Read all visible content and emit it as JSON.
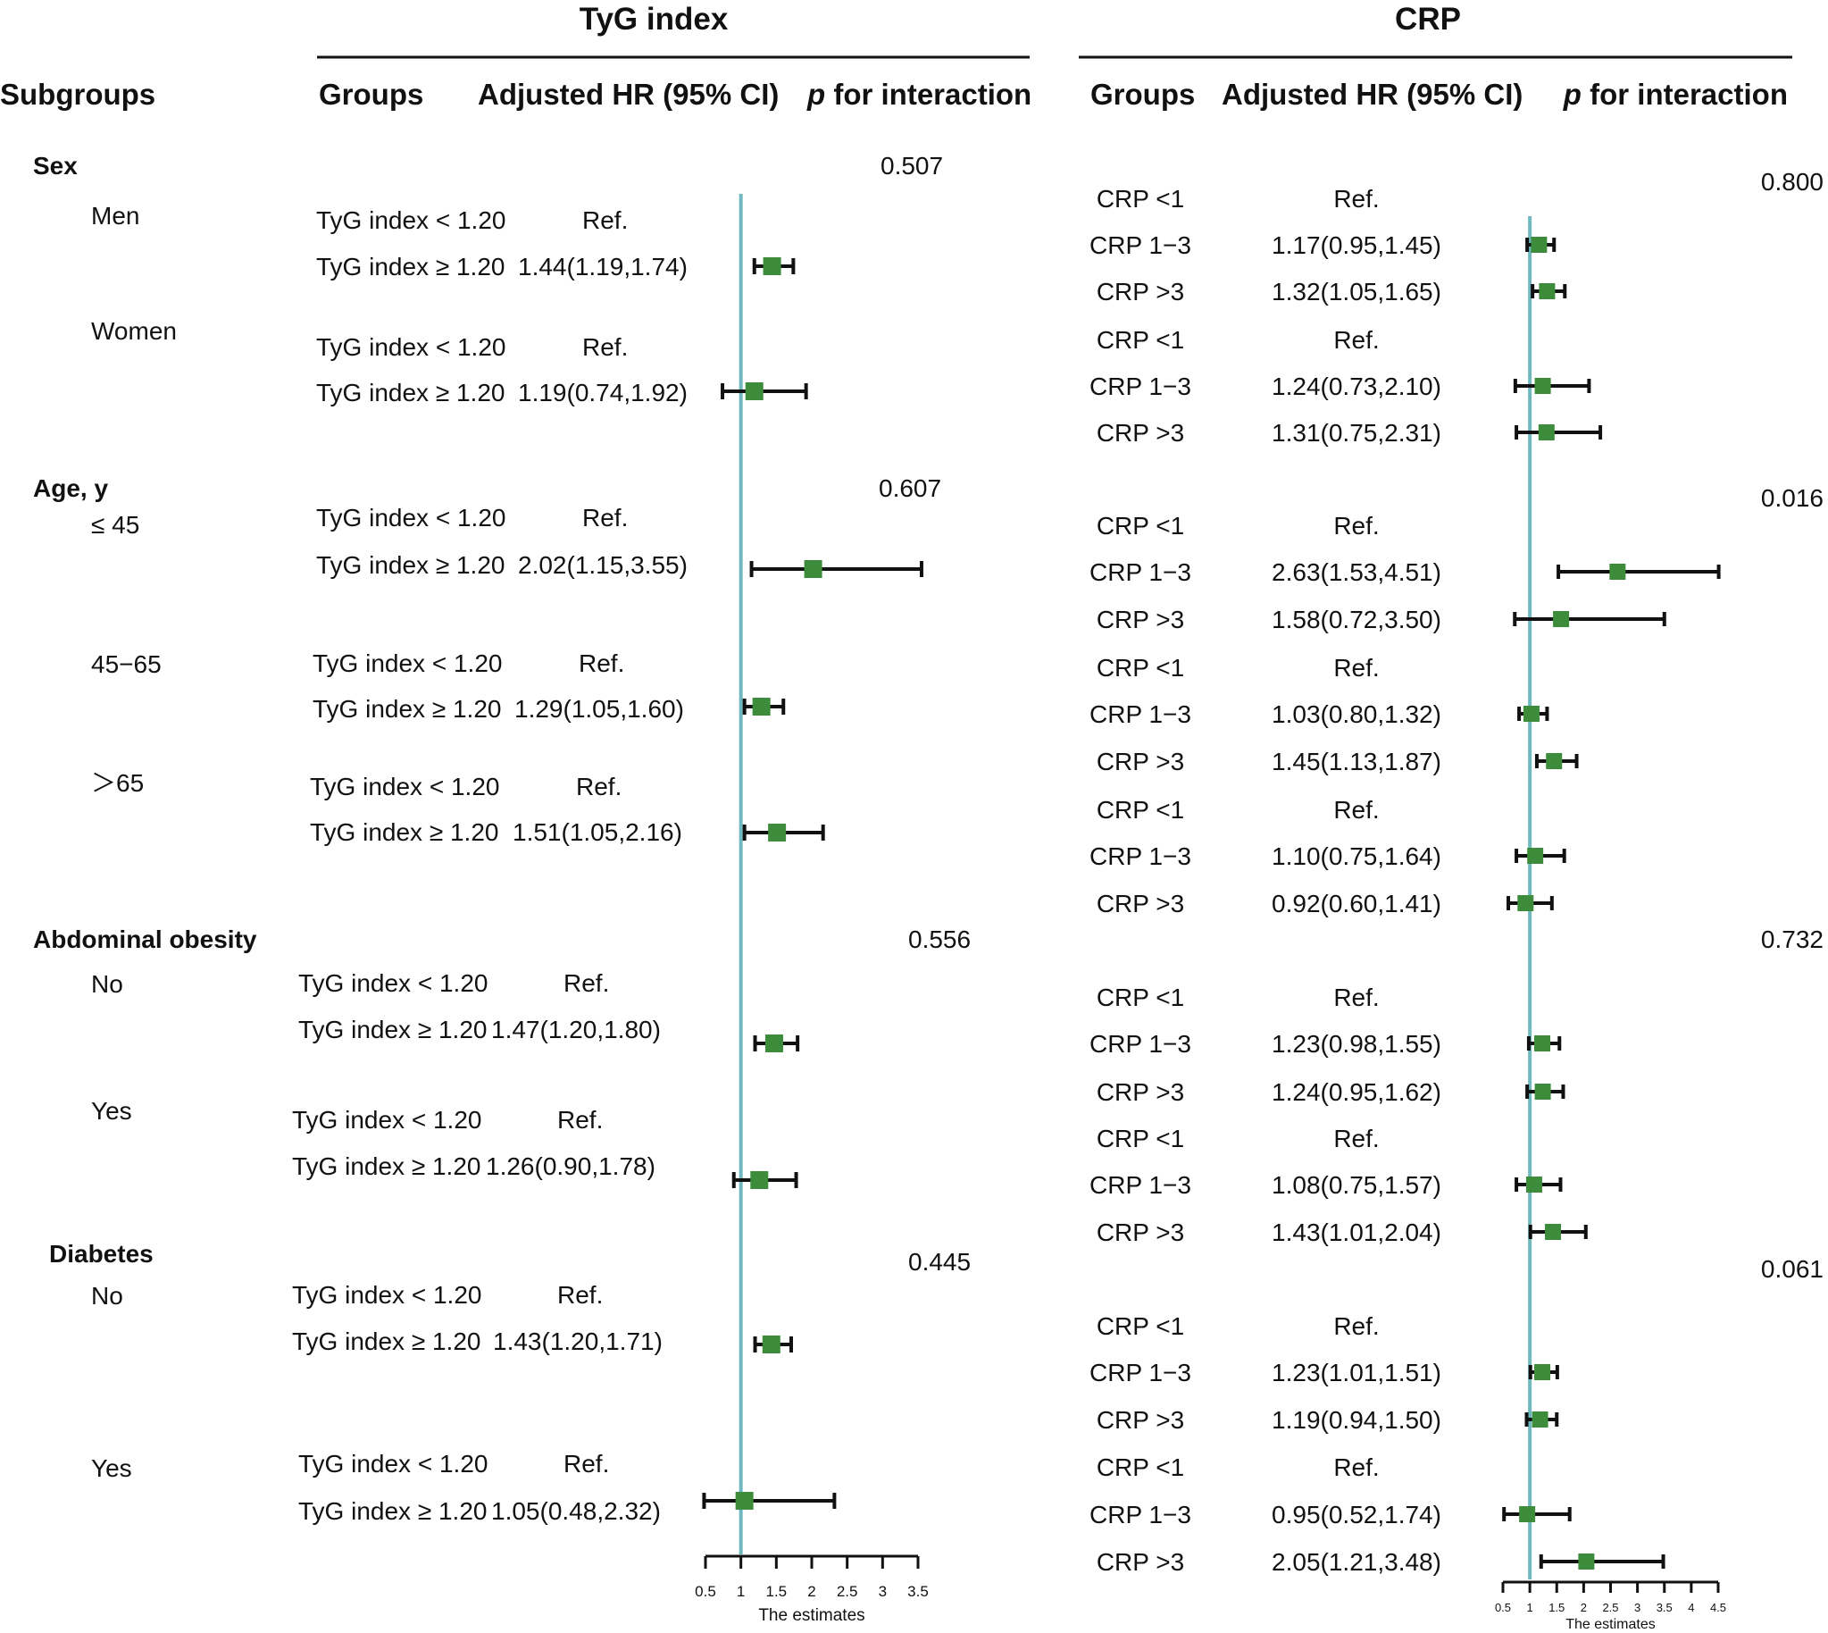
{
  "chart_data": [
    {
      "type": "forest",
      "panel": "tyg",
      "title": "TyG index",
      "headers": {
        "subgroups": "Subgroups",
        "groups": "Groups",
        "hr": "Adjusted HR (95% CI)",
        "p_italic": "p",
        "p_rest": " for interaction"
      },
      "xlabel": "The estimates",
      "xlim": [
        0.5,
        3.5
      ],
      "ticks": [
        0.5,
        1,
        1.5,
        2,
        2.5,
        3,
        3.5
      ],
      "tick_labels": [
        "0.5",
        "1",
        "1.5",
        "2",
        "2.5",
        "3",
        "3.5"
      ],
      "reference_line": 1,
      "categories": [
        {
          "label": "Sex",
          "p_value": "0.507"
        },
        {
          "label": "Age, y",
          "p_value": "0.607"
        },
        {
          "label": "Abdominal obesity",
          "p_value": "0.556"
        },
        {
          "label": "Diabetes",
          "p_value": "0.445"
        }
      ],
      "subgroups": [
        {
          "label": "Men"
        },
        {
          "label": "Women"
        },
        {
          "label": "≤ 45"
        },
        {
          "label": "45−65"
        },
        {
          "label": "＞65"
        },
        {
          "label": "No"
        },
        {
          "label": "Yes"
        },
        {
          "label": "No"
        },
        {
          "label": "Yes"
        }
      ],
      "rows": [
        {
          "group": "TyG index < 1.20",
          "hr_text": "Ref."
        },
        {
          "group": "TyG index ≥ 1.20",
          "hr_text": "1.44(1.19,1.74)",
          "est": 1.44,
          "lo": 1.19,
          "hi": 1.74
        },
        {
          "group": "TyG index < 1.20",
          "hr_text": "Ref."
        },
        {
          "group": "TyG index ≥ 1.20",
          "hr_text": "1.19(0.74,1.92)",
          "est": 1.19,
          "lo": 0.74,
          "hi": 1.92
        },
        {
          "group": "TyG index < 1.20",
          "hr_text": "Ref."
        },
        {
          "group": "TyG index ≥ 1.20",
          "hr_text": "2.02(1.15,3.55)",
          "est": 2.02,
          "lo": 1.15,
          "hi": 3.55
        },
        {
          "group": "TyG index < 1.20",
          "hr_text": "Ref."
        },
        {
          "group": "TyG index ≥ 1.20",
          "hr_text": "1.29(1.05,1.60)",
          "est": 1.29,
          "lo": 1.05,
          "hi": 1.6
        },
        {
          "group": "TyG index < 1.20",
          "hr_text": "Ref."
        },
        {
          "group": "TyG index ≥ 1.20",
          "hr_text": "1.51(1.05,2.16)",
          "est": 1.51,
          "lo": 1.05,
          "hi": 2.16
        },
        {
          "group": "TyG index < 1.20",
          "hr_text": "Ref."
        },
        {
          "group": "TyG index ≥ 1.20",
          "hr_text": "1.47(1.20,1.80)",
          "est": 1.47,
          "lo": 1.2,
          "hi": 1.8
        },
        {
          "group": "TyG index < 1.20",
          "hr_text": "Ref."
        },
        {
          "group": "TyG index ≥ 1.20",
          "hr_text": "1.26(0.90,1.78)",
          "est": 1.26,
          "lo": 0.9,
          "hi": 1.78
        },
        {
          "group": "TyG index < 1.20",
          "hr_text": "Ref."
        },
        {
          "group": "TyG index ≥ 1.20",
          "hr_text": "1.43(1.20,1.71)",
          "est": 1.43,
          "lo": 1.2,
          "hi": 1.71
        },
        {
          "group": "TyG index < 1.20",
          "hr_text": "Ref."
        },
        {
          "group": "TyG index ≥ 1.20",
          "hr_text": "1.05(0.48,2.32)",
          "est": 1.05,
          "lo": 0.48,
          "hi": 2.32
        }
      ]
    },
    {
      "type": "forest",
      "panel": "crp",
      "title": "CRP",
      "headers": {
        "groups": "Groups",
        "hr": "Adjusted HR (95% CI)",
        "p_italic": "p",
        "p_rest": " for interaction"
      },
      "xlabel": "The estimates",
      "xlim": [
        0.5,
        4.5
      ],
      "ticks": [
        0.5,
        1,
        1.5,
        2,
        2.5,
        3,
        3.5,
        4,
        4.5
      ],
      "tick_labels": [
        "0.5",
        "1",
        "1.5",
        "2",
        "2.5",
        "3",
        "3.5",
        "4",
        "4.5"
      ],
      "reference_line": 1,
      "p_values": [
        "0.800",
        "0.016",
        "0.732",
        "0.061"
      ],
      "rows": [
        {
          "group": "CRP <1",
          "hr_text": "Ref."
        },
        {
          "group": "CRP 1−3",
          "hr_text": "1.17(0.95,1.45)",
          "est": 1.17,
          "lo": 0.95,
          "hi": 1.45
        },
        {
          "group": "CRP >3",
          "hr_text": "1.32(1.05,1.65)",
          "est": 1.32,
          "lo": 1.05,
          "hi": 1.65
        },
        {
          "group": "CRP <1",
          "hr_text": "Ref."
        },
        {
          "group": "CRP 1−3",
          "hr_text": "1.24(0.73,2.10)",
          "est": 1.24,
          "lo": 0.73,
          "hi": 2.1
        },
        {
          "group": "CRP >3",
          "hr_text": "1.31(0.75,2.31)",
          "est": 1.31,
          "lo": 0.75,
          "hi": 2.31
        },
        {
          "group": "CRP <1",
          "hr_text": "Ref."
        },
        {
          "group": "CRP 1−3",
          "hr_text": "2.63(1.53,4.51)",
          "est": 2.63,
          "lo": 1.53,
          "hi": 4.51
        },
        {
          "group": "CRP >3",
          "hr_text": "1.58(0.72,3.50)",
          "est": 1.58,
          "lo": 0.72,
          "hi": 3.5
        },
        {
          "group": "CRP <1",
          "hr_text": "Ref."
        },
        {
          "group": "CRP 1−3",
          "hr_text": "1.03(0.80,1.32)",
          "est": 1.03,
          "lo": 0.8,
          "hi": 1.32
        },
        {
          "group": "CRP >3",
          "hr_text": "1.45(1.13,1.87)",
          "est": 1.45,
          "lo": 1.13,
          "hi": 1.87
        },
        {
          "group": "CRP <1",
          "hr_text": "Ref."
        },
        {
          "group": "CRP 1−3",
          "hr_text": "1.10(0.75,1.64)",
          "est": 1.1,
          "lo": 0.75,
          "hi": 1.64
        },
        {
          "group": "CRP >3",
          "hr_text": "0.92(0.60,1.41)",
          "est": 0.92,
          "lo": 0.6,
          "hi": 1.41
        },
        {
          "group": "CRP <1",
          "hr_text": "Ref."
        },
        {
          "group": "CRP 1−3",
          "hr_text": "1.23(0.98,1.55)",
          "est": 1.23,
          "lo": 0.98,
          "hi": 1.55
        },
        {
          "group": "CRP >3",
          "hr_text": "1.24(0.95,1.62)",
          "est": 1.24,
          "lo": 0.95,
          "hi": 1.62
        },
        {
          "group": "CRP <1",
          "hr_text": "Ref."
        },
        {
          "group": "CRP 1−3",
          "hr_text": "1.08(0.75,1.57)",
          "est": 1.08,
          "lo": 0.75,
          "hi": 1.57
        },
        {
          "group": "CRP >3",
          "hr_text": "1.43(1.01,2.04)",
          "est": 1.43,
          "lo": 1.01,
          "hi": 2.04
        },
        {
          "group": "CRP <1",
          "hr_text": "Ref."
        },
        {
          "group": "CRP 1−3",
          "hr_text": "1.23(1.01,1.51)",
          "est": 1.23,
          "lo": 1.01,
          "hi": 1.51
        },
        {
          "group": "CRP >3",
          "hr_text": "1.19(0.94,1.50)",
          "est": 1.19,
          "lo": 0.94,
          "hi": 1.5
        },
        {
          "group": "CRP <1",
          "hr_text": "Ref."
        },
        {
          "group": "CRP 1−3",
          "hr_text": "0.95(0.52,1.74)",
          "est": 0.95,
          "lo": 0.52,
          "hi": 1.74
        },
        {
          "group": "CRP >3",
          "hr_text": "2.05(1.21,3.48)",
          "est": 2.05,
          "lo": 1.21,
          "hi": 3.48
        }
      ]
    }
  ],
  "colors": {
    "marker": "#3c8c3c",
    "ref_line": "#6fb8bf",
    "text": "#111111",
    "line": "#111111"
  }
}
